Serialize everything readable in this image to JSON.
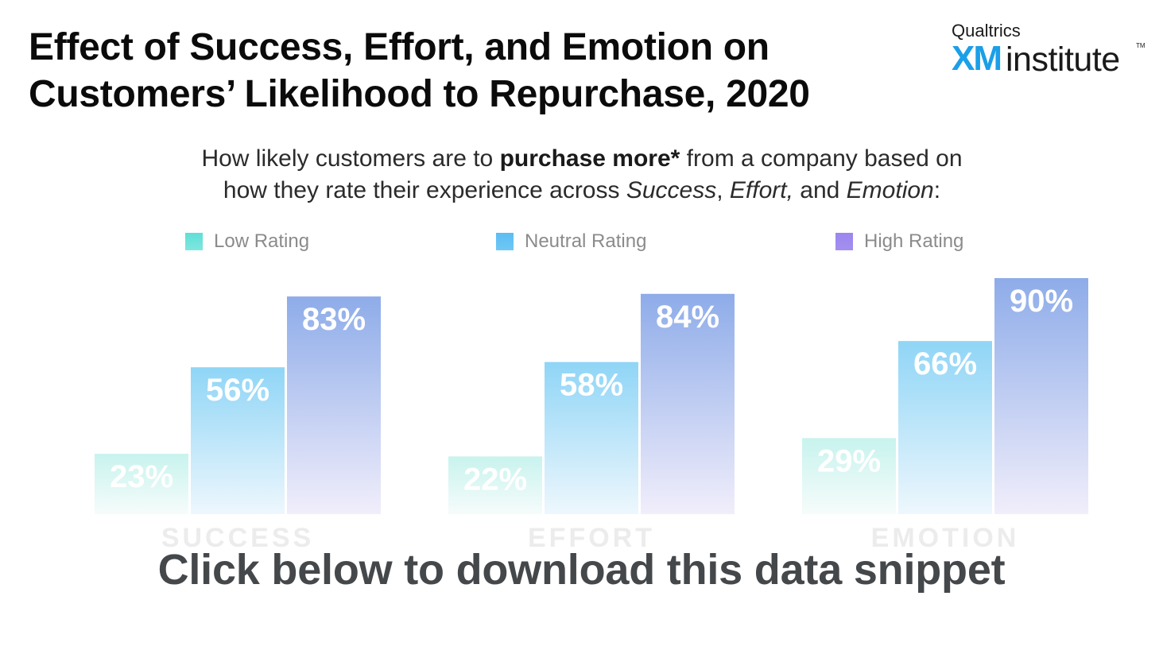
{
  "logo": {
    "brand": "Qualtrics",
    "xm": "XM",
    "product": "institute",
    "tm": "TM"
  },
  "title": {
    "line1": "Effect of Success, Effort, and Emotion on",
    "line2": "Customers’ Likelihood to Repurchase, 2020"
  },
  "subtitle": {
    "line1_pre": "How likely customers are to ",
    "line1_bold": "purchase more*",
    "line1_post": " from a company based on",
    "line2_pre": "how they rate their experience across ",
    "success": "Success",
    "comma1": ", ",
    "effort": "Effort,",
    "and": " and ",
    "emotion": "Emotion",
    "colon": ":"
  },
  "cta": "Click below to download this data snippet",
  "colors": {
    "low": "#5fdfd6",
    "neutral": "#5cbcf4",
    "high": "#9a86ee",
    "low_bar_top": "#c8f3ee",
    "neutral_bar_top": "#88d3f6",
    "high_bar_top": "#8eace9"
  },
  "chart_data": {
    "type": "bar",
    "categories": [
      "SUCCESS",
      "EFFORT",
      "EMOTION"
    ],
    "series": [
      {
        "name": "Low Rating",
        "values": [
          23,
          22,
          29
        ]
      },
      {
        "name": "Neutral Rating",
        "values": [
          56,
          58,
          66
        ]
      },
      {
        "name": "High Rating",
        "values": [
          83,
          84,
          90
        ]
      }
    ],
    "data_labels": [
      [
        "23%",
        "22%",
        "29%"
      ],
      [
        "56%",
        "58%",
        "66%"
      ],
      [
        "83%",
        "84%",
        "90%"
      ]
    ],
    "ylim": [
      0,
      100
    ],
    "grid": false,
    "legend_position": "top"
  }
}
